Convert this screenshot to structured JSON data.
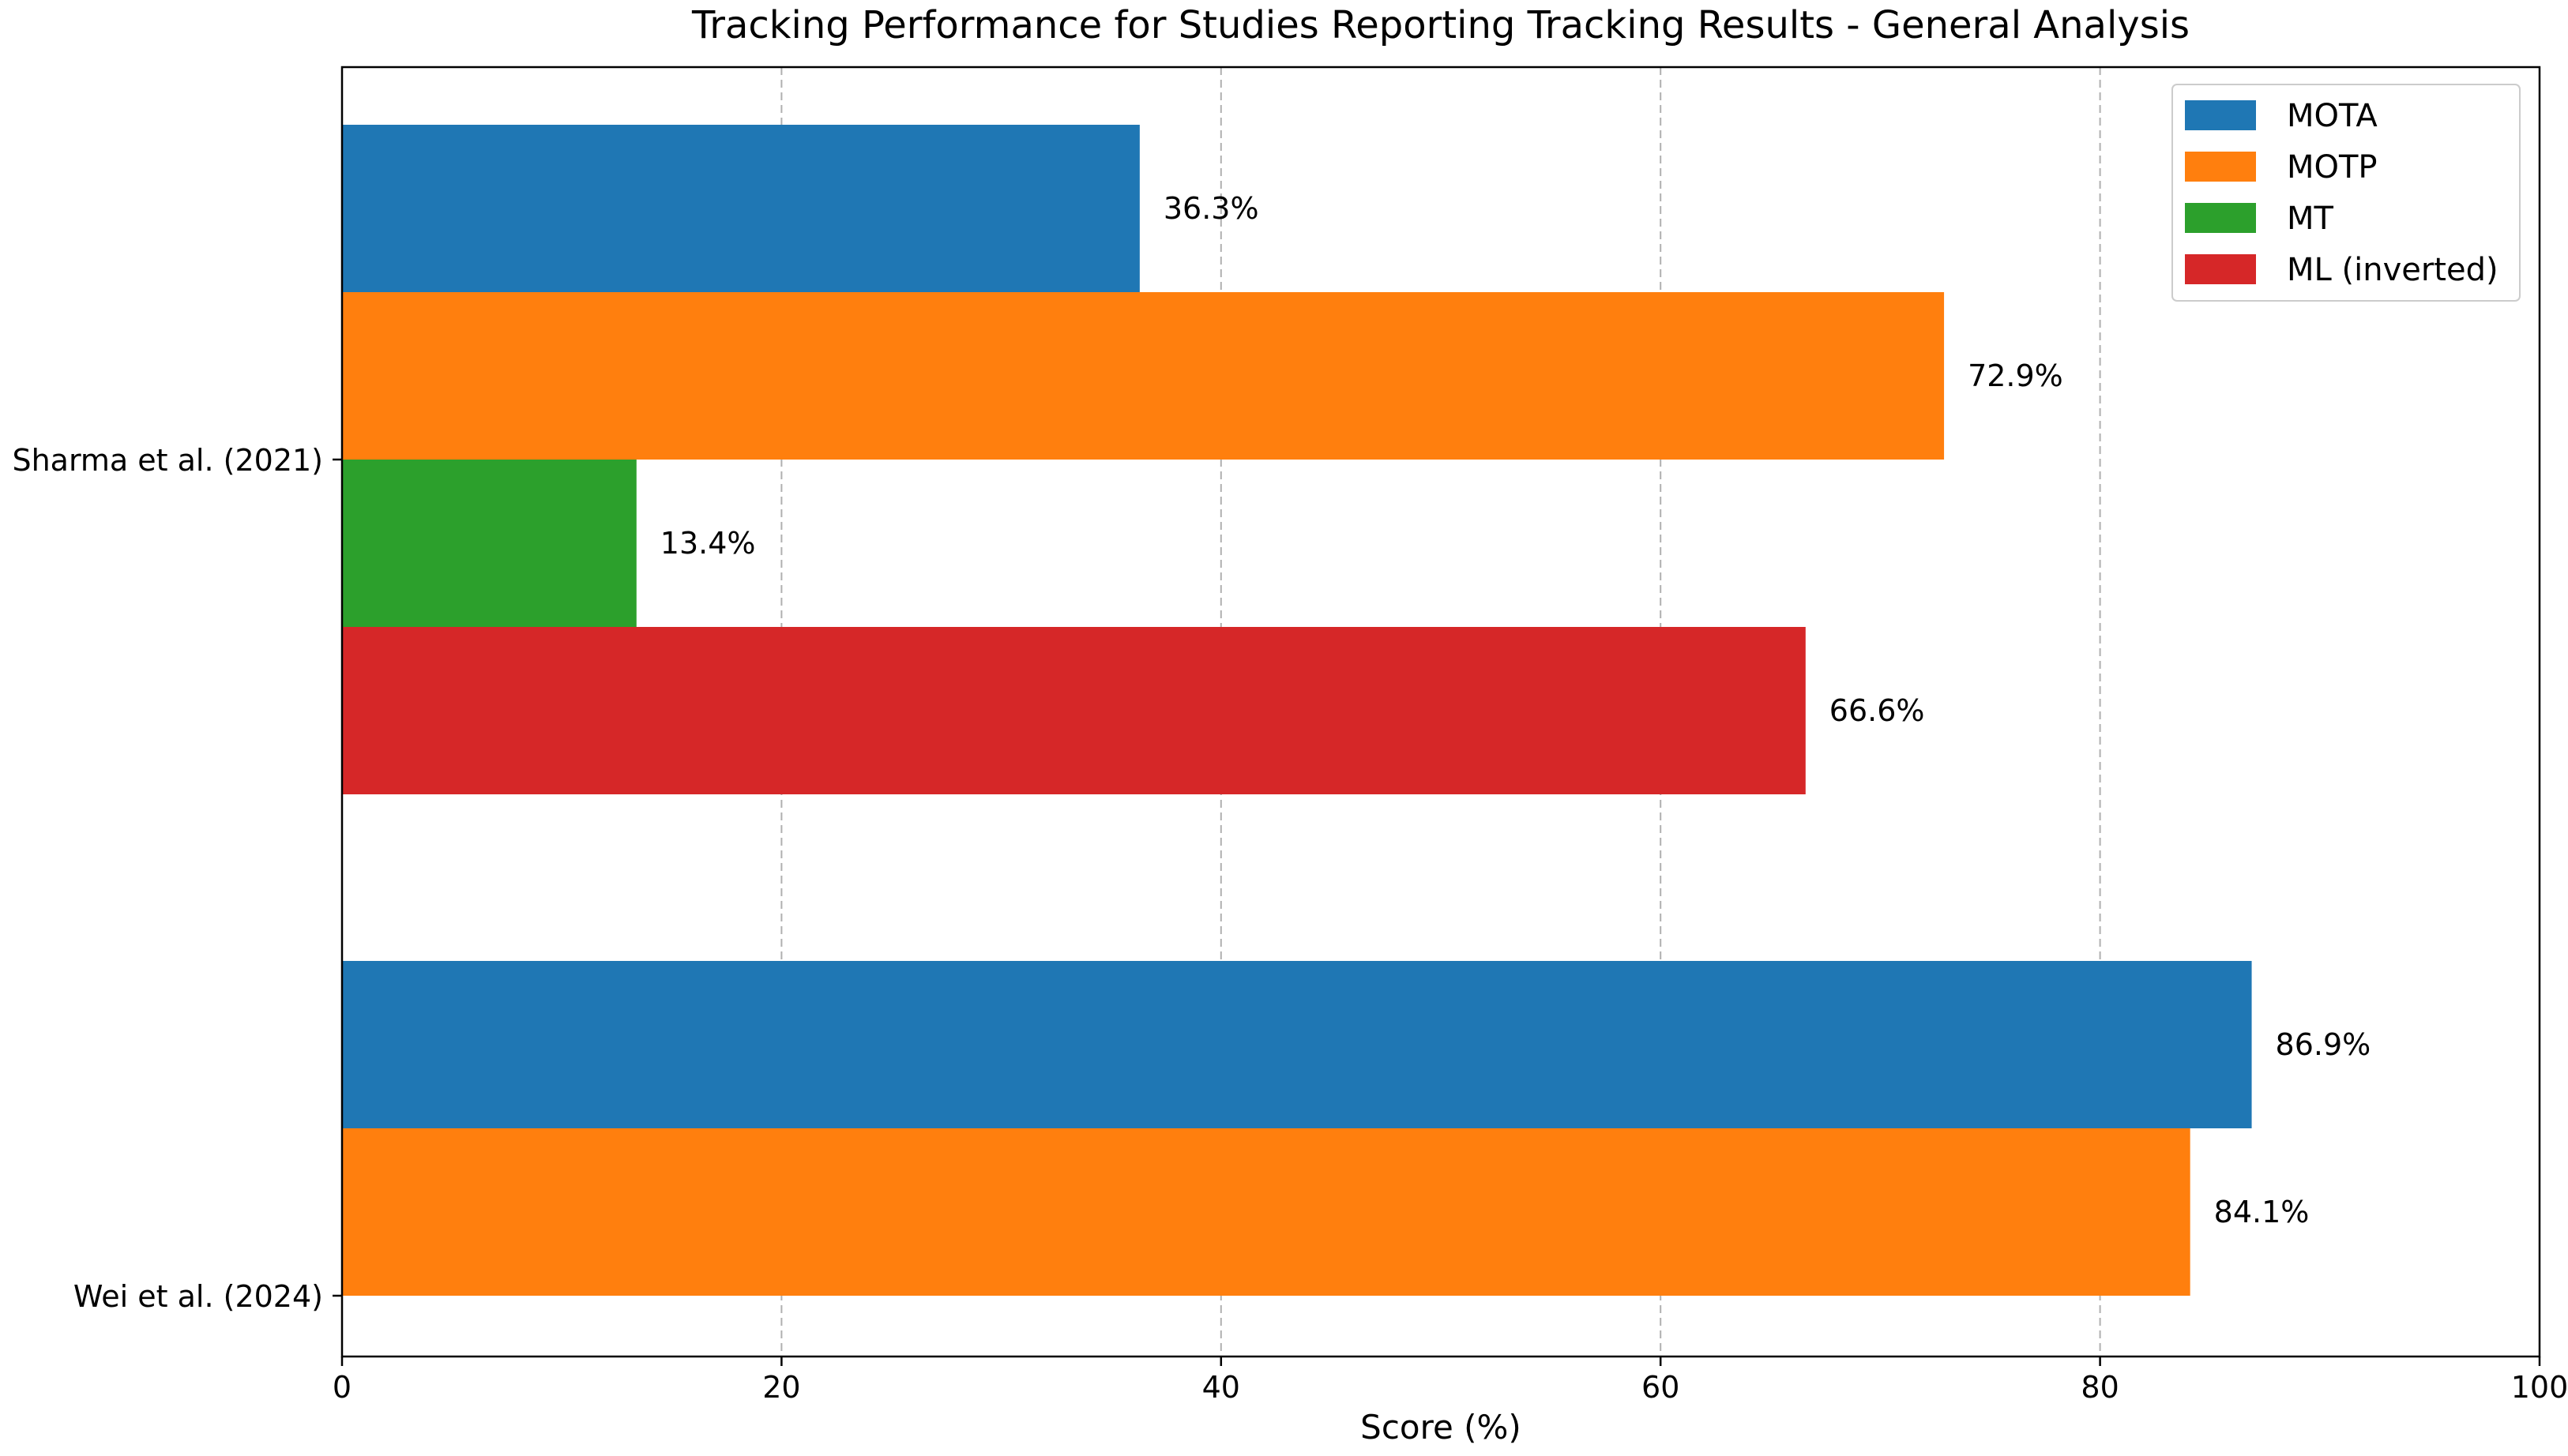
{
  "chart_data": {
    "type": "bar",
    "orientation": "horizontal",
    "title": "Tracking Performance for Studies Reporting Tracking Results - General Analysis",
    "xlabel": "Score (%)",
    "ylabel": "",
    "xlim": [
      0,
      100
    ],
    "x_ticks": [
      0,
      20,
      40,
      60,
      80,
      100
    ],
    "grid": "x, dashed",
    "legend_position": "top-right",
    "categories": [
      "Sharma et al. (2021)",
      "Wei et al. (2024)"
    ],
    "series": [
      {
        "name": "MOTA",
        "color": "#1f77b4",
        "values": [
          36.3,
          86.9
        ],
        "labels": [
          "36.3%",
          "86.9%"
        ]
      },
      {
        "name": "MOTP",
        "color": "#ff7f0e",
        "values": [
          72.9,
          84.1
        ],
        "labels": [
          "72.9%",
          "84.1%"
        ]
      },
      {
        "name": "MT",
        "color": "#2ca02c",
        "values": [
          13.4,
          null
        ],
        "labels": [
          "13.4%",
          null
        ]
      },
      {
        "name": "ML (inverted)",
        "color": "#d62728",
        "values": [
          66.6,
          null
        ],
        "labels": [
          "66.6%",
          null
        ]
      }
    ]
  }
}
